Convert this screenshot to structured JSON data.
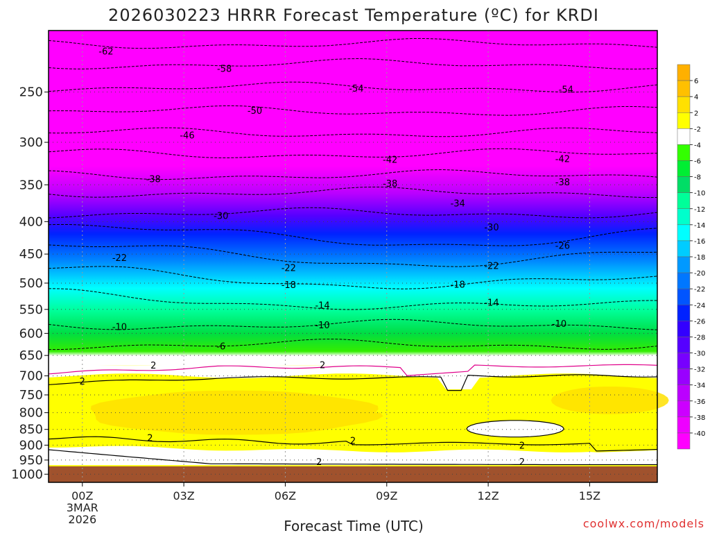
{
  "chart_data": {
    "type": "heatmap",
    "title": "2026030223 HRRR Forecast Temperature (ºC) for KRDI",
    "xlabel": "Forecast Time (UTC)",
    "ylabel": "",
    "x_ticks": [
      "00Z",
      "03Z",
      "06Z",
      "09Z",
      "12Z",
      "15Z"
    ],
    "x_tick_hours": [
      0,
      3,
      6,
      9,
      12,
      15
    ],
    "x_date_line1": "3MAR",
    "x_date_line2": "2026",
    "xlim_hours": [
      -1,
      17
    ],
    "y_ticks": [
      250,
      300,
      350,
      400,
      450,
      500,
      550,
      600,
      650,
      700,
      750,
      800,
      850,
      900,
      950,
      1000
    ],
    "ylim_hPa": [
      200,
      1030
    ],
    "y_scale": "log",
    "colorbar": {
      "levels": [
        6,
        4,
        2,
        -2,
        -4,
        -6,
        -8,
        -10,
        -12,
        -14,
        -16,
        -18,
        -20,
        -22,
        -24,
        -26,
        -28,
        -30,
        -32,
        -34,
        -36,
        -38,
        -40
      ],
      "colors": [
        "#ffc000",
        "#ffe000",
        "#ffff00",
        "#ffffff",
        "#33ff00",
        "#00ee33",
        "#00dd66",
        "#00ff99",
        "#00ffcc",
        "#00ffff",
        "#00ccff",
        "#0099ff",
        "#0077ff",
        "#0055ff",
        "#0022ff",
        "#3300ff",
        "#5500ff",
        "#7700ff",
        "#9900ff",
        "#bb00ff",
        "#cc00ff",
        "#ee00ff",
        "#ff00ff"
      ]
    },
    "isotherm_labels": [
      {
        "value": "-62",
        "hour": 0.7,
        "p": 216
      },
      {
        "value": "-58",
        "hour": 4.2,
        "p": 230
      },
      {
        "value": "-54",
        "hour": 8.1,
        "p": 247
      },
      {
        "value": "-54",
        "hour": 14.3,
        "p": 248
      },
      {
        "value": "-50",
        "hour": 5.1,
        "p": 268
      },
      {
        "value": "-46",
        "hour": 3.1,
        "p": 293
      },
      {
        "value": "-42",
        "hour": 9.1,
        "p": 320
      },
      {
        "value": "-42",
        "hour": 14.2,
        "p": 319
      },
      {
        "value": "-38",
        "hour": 2.1,
        "p": 343
      },
      {
        "value": "-38",
        "hour": 9.1,
        "p": 349
      },
      {
        "value": "-38",
        "hour": 14.2,
        "p": 347
      },
      {
        "value": "-34",
        "hour": 11.1,
        "p": 375
      },
      {
        "value": "-30",
        "hour": 4.1,
        "p": 392
      },
      {
        "value": "-30",
        "hour": 12.1,
        "p": 409
      },
      {
        "value": "-26",
        "hour": 14.2,
        "p": 437
      },
      {
        "value": "-22",
        "hour": 1.1,
        "p": 457
      },
      {
        "value": "-22",
        "hour": 6.1,
        "p": 474
      },
      {
        "value": "-22",
        "hour": 12.1,
        "p": 470
      },
      {
        "value": "-18",
        "hour": 6.1,
        "p": 504
      },
      {
        "value": "-18",
        "hour": 11.1,
        "p": 503
      },
      {
        "value": "-14",
        "hour": 7.1,
        "p": 543
      },
      {
        "value": "-14",
        "hour": 12.1,
        "p": 537
      },
      {
        "value": "-10",
        "hour": 1.1,
        "p": 587
      },
      {
        "value": "-10",
        "hour": 7.1,
        "p": 583
      },
      {
        "value": "-10",
        "hour": 14.1,
        "p": 580
      },
      {
        "value": "-6",
        "hour": 4.1,
        "p": 630
      },
      {
        "value": "2",
        "hour": 2.1,
        "p": 675
      },
      {
        "value": "2",
        "hour": 7.1,
        "p": 674
      },
      {
        "value": "2",
        "hour": 0.0,
        "p": 715
      },
      {
        "value": "2",
        "hour": 2.0,
        "p": 878
      },
      {
        "value": "2",
        "hour": 8.0,
        "p": 887
      },
      {
        "value": "2",
        "hour": 13.0,
        "p": 903
      },
      {
        "value": "2",
        "hour": 7.0,
        "p": 957
      },
      {
        "value": "2",
        "hour": 13.0,
        "p": 957
      }
    ]
  },
  "credit": "coolwx.com/models"
}
